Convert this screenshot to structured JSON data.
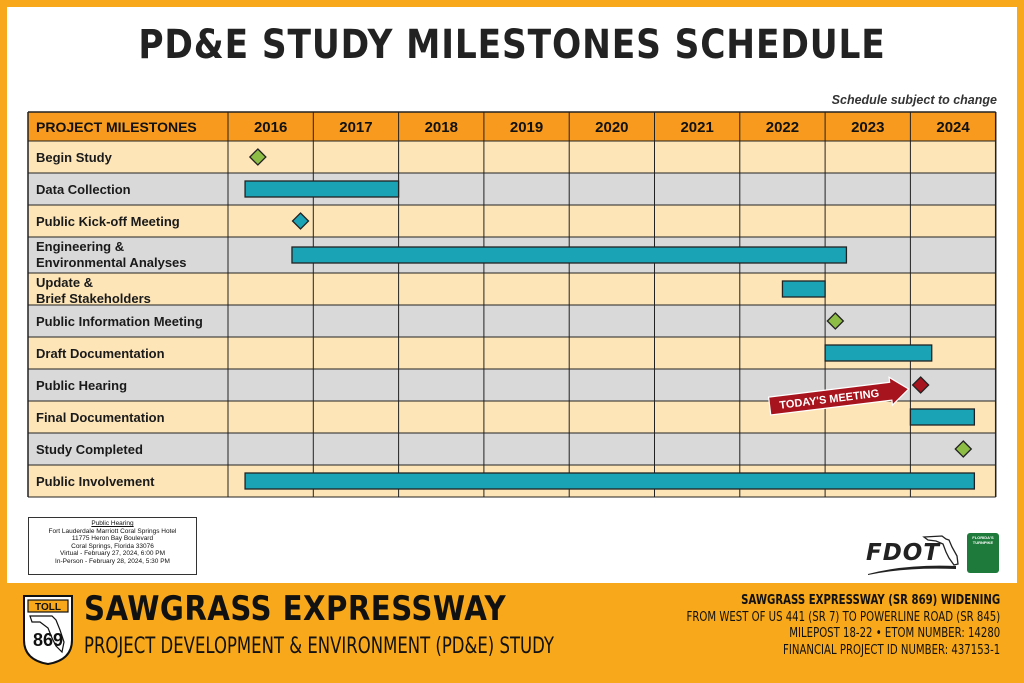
{
  "title": "PD&E STUDY MILESTONES SCHEDULE",
  "note": "Schedule subject to change",
  "chart_data": {
    "type": "gantt",
    "header_label": "PROJECT MILESTONES",
    "years": [
      "2016",
      "2017",
      "2018",
      "2019",
      "2020",
      "2021",
      "2022",
      "2023",
      "2024"
    ],
    "tasks": [
      {
        "name": "Begin Study",
        "kind": "milestone",
        "at": 2016.35,
        "color": "#8dbd45"
      },
      {
        "name": "Data Collection",
        "kind": "bar",
        "start": 2016.2,
        "end": 2018.0,
        "color": "#1aa3b5"
      },
      {
        "name": "Public Kick-off Meeting",
        "kind": "milestone",
        "at": 2016.85,
        "color": "#1aa3b5"
      },
      {
        "name": "Engineering & Environmental Analyses",
        "kind": "bar",
        "start": 2016.75,
        "end": 2023.25,
        "color": "#1aa3b5"
      },
      {
        "name": "Update & Brief Stakeholders",
        "kind": "bar",
        "start": 2022.5,
        "end": 2023.0,
        "color": "#1aa3b5"
      },
      {
        "name": "Public Information Meeting",
        "kind": "milestone",
        "at": 2023.12,
        "color": "#8dbd45"
      },
      {
        "name": "Draft Documentation",
        "kind": "bar",
        "start": 2023.0,
        "end": 2024.25,
        "color": "#1aa3b5"
      },
      {
        "name": "Public Hearing",
        "kind": "milestone",
        "at": 2024.12,
        "color": "#a8141e"
      },
      {
        "name": "Final Documentation",
        "kind": "bar",
        "start": 2024.0,
        "end": 2024.75,
        "color": "#1aa3b5"
      },
      {
        "name": "Study Completed",
        "kind": "milestone",
        "at": 2024.62,
        "color": "#8dbd45"
      },
      {
        "name": "Public Involvement",
        "kind": "bar",
        "start": 2016.2,
        "end": 2024.75,
        "color": "#1aa3b5"
      }
    ],
    "callout": "TODAY'S MEETING"
  },
  "colors": {
    "header_bg": "#f79a1e",
    "row_light": "#fde5b8",
    "row_grey": "#d9d9d9",
    "accent": "#f7a81b"
  },
  "hearing_info": {
    "title": "Public Hearing",
    "lines": [
      "Fort Lauderdale Marriott Coral Springs Hotel",
      "11775 Heron Bay Boulevard",
      "Coral Springs, Florida 33076",
      "Virtual - February 27, 2024, 6:00 PM",
      "In-Person - February 28, 2024, 5:30 PM"
    ]
  },
  "logos": {
    "fdot": "FDOT",
    "turnpike": "FLORIDA'S TURNPIKE",
    "shield_top": "TOLL",
    "shield_number": "869"
  },
  "footer": {
    "name": "SAWGRASS EXPRESSWAY",
    "subtitle": "PROJECT DEVELOPMENT & ENVIRONMENT (PD&E) STUDY",
    "info": [
      "SAWGRASS EXPRESSWAY (SR 869) WIDENING",
      "FROM WEST OF US 441 (SR 7) TO POWERLINE ROAD (SR 845)",
      "MILEPOST 18-22 • ETOM NUMBER: 14280",
      "FINANCIAL PROJECT ID NUMBER: 437153-1"
    ]
  }
}
